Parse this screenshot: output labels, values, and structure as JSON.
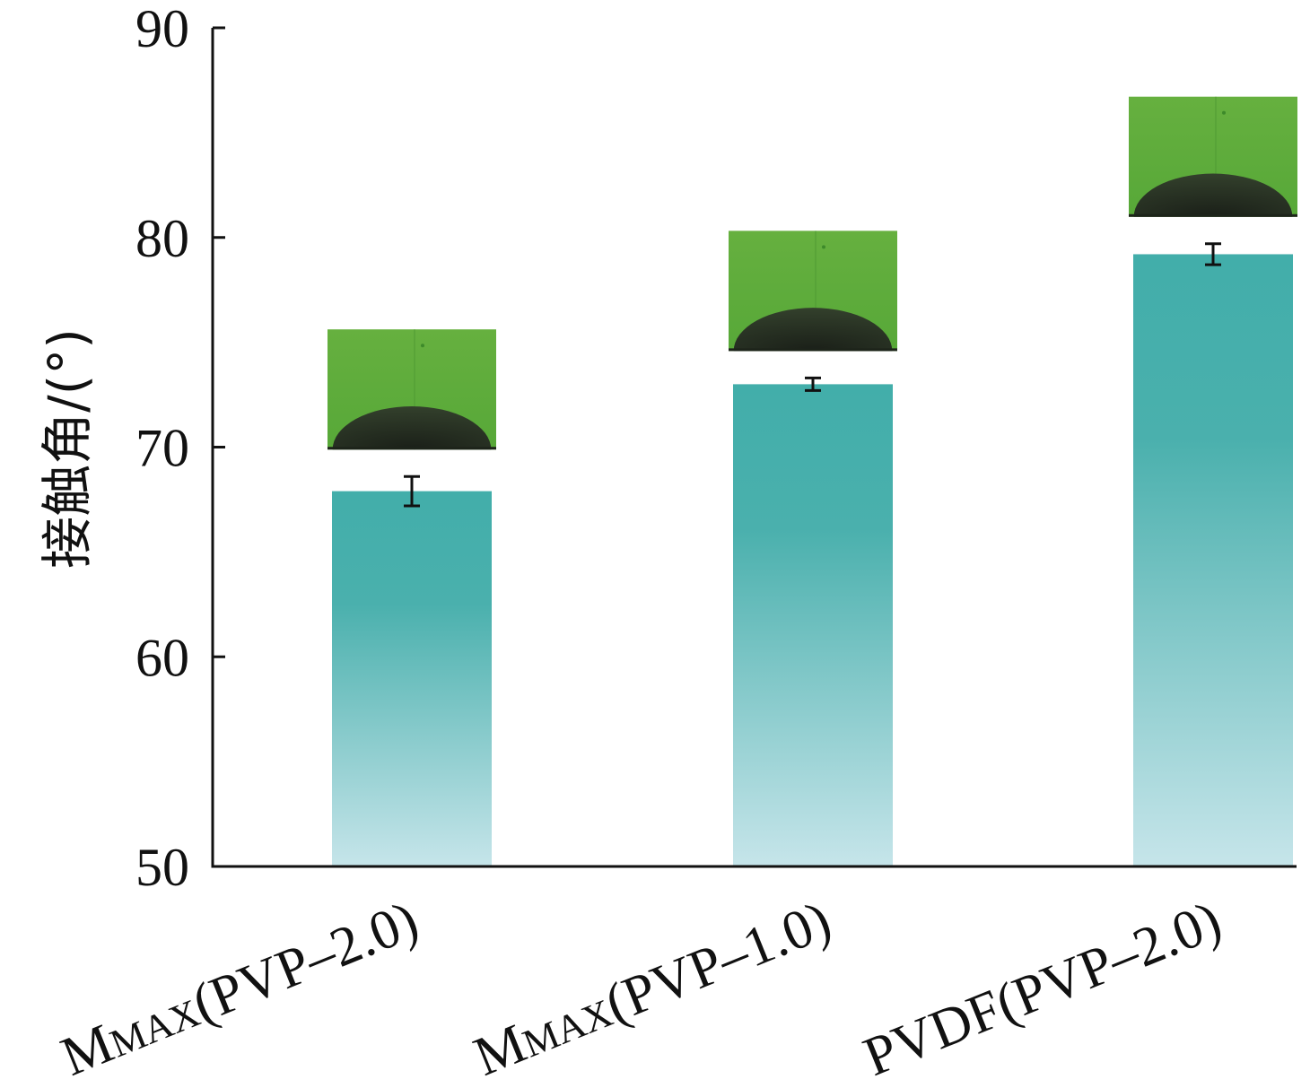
{
  "chart_data": {
    "type": "bar",
    "title": "",
    "xlabel": "",
    "ylabel": "接触角/(°)",
    "ylim": [
      50,
      90
    ],
    "yticks": [
      "50",
      "60",
      "70",
      "80",
      "90"
    ],
    "categories": [
      "MMAX(PVP-2.0)",
      "MMAX(PVP-1.0)",
      "PVDF(PVP-2.0)"
    ],
    "category_labels": [
      {
        "prefix": "M",
        "small": "MAX",
        "rest": "(PVP–2.0)"
      },
      {
        "prefix": "M",
        "small": "MAX",
        "rest": "(PVP–1.0)"
      },
      {
        "prefix": "",
        "small": "",
        "rest": "PVDF(PVP–2.0)"
      }
    ],
    "values": [
      67.9,
      73.0,
      79.2
    ],
    "errors": [
      0.7,
      0.3,
      0.5
    ],
    "insets": [
      "water droplet contact-angle image",
      "water droplet contact-angle image",
      "water droplet contact-angle image"
    ],
    "grid": false,
    "legend": "none",
    "colors": {
      "bar_top": "#42aeaa",
      "bar_bottom": "#c6e5ea",
      "inset_bg": "#62ad3e",
      "droplet": "#232b20",
      "axis": "#111111"
    }
  }
}
